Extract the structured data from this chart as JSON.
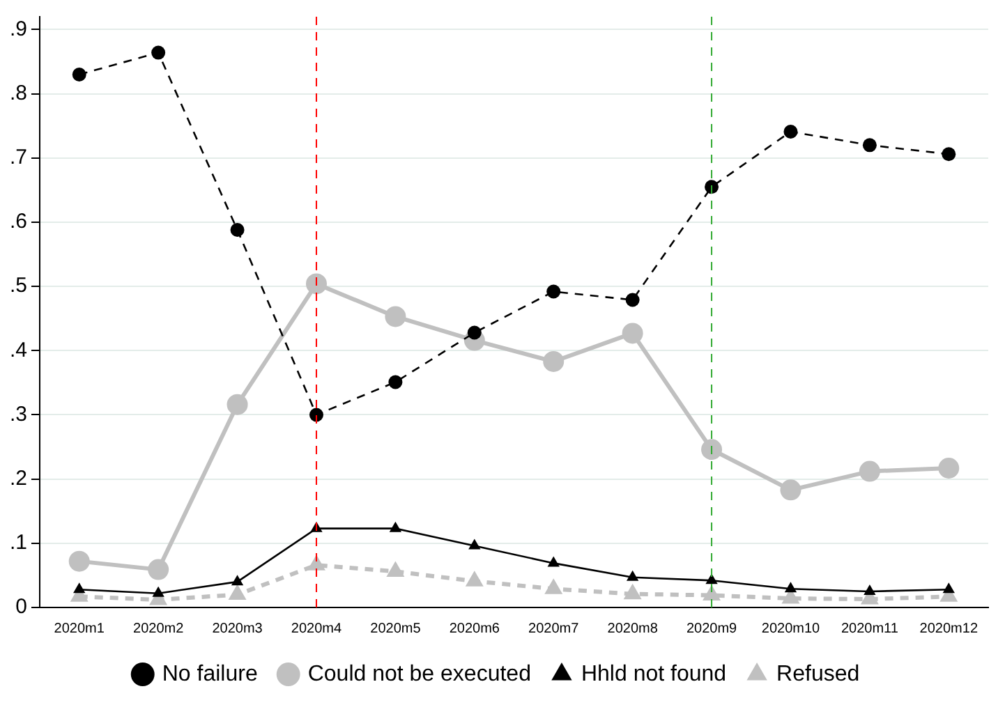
{
  "chart_data": {
    "type": "line",
    "categories": [
      "2020m1",
      "2020m2",
      "2020m3",
      "2020m4",
      "2020m5",
      "2020m6",
      "2020m7",
      "2020m8",
      "2020m9",
      "2020m10",
      "2020m11",
      "2020m12"
    ],
    "ylim": [
      0,
      0.92
    ],
    "yticks": [
      {
        "value": 0,
        "label": "0"
      },
      {
        "value": 0.1,
        "label": ".1"
      },
      {
        "value": 0.2,
        "label": ".2"
      },
      {
        "value": 0.3,
        "label": ".3"
      },
      {
        "value": 0.4,
        "label": ".4"
      },
      {
        "value": 0.5,
        "label": ".5"
      },
      {
        "value": 0.6,
        "label": ".6"
      },
      {
        "value": 0.7,
        "label": ".7"
      },
      {
        "value": 0.8,
        "label": ".8"
      },
      {
        "value": 0.9,
        "label": ".9"
      }
    ],
    "grid": "y",
    "legend": "bottom",
    "series": [
      {
        "name": "No failure",
        "color": "#000000",
        "marker": "circle",
        "line_style": "dashed",
        "values": [
          0.83,
          0.864,
          0.588,
          0.3,
          0.351,
          0.428,
          0.492,
          0.479,
          0.655,
          0.741,
          0.72,
          0.706
        ]
      },
      {
        "name": "Could not be executed",
        "color": "#c0c0c0",
        "marker": "circle",
        "line_style": "solid",
        "values": [
          0.072,
          0.059,
          0.316,
          0.504,
          0.453,
          0.416,
          0.383,
          0.427,
          0.246,
          0.183,
          0.212,
          0.217
        ]
      },
      {
        "name": "Hhld not found",
        "color": "#000000",
        "marker": "triangle",
        "line_style": "solid",
        "values": [
          0.028,
          0.022,
          0.04,
          0.123,
          0.123,
          0.096,
          0.069,
          0.047,
          0.042,
          0.029,
          0.025,
          0.028
        ]
      },
      {
        "name": "Refused",
        "color": "#c0c0c0",
        "marker": "triangle",
        "line_style": "dashed",
        "values": [
          0.017,
          0.012,
          0.02,
          0.066,
          0.056,
          0.041,
          0.029,
          0.021,
          0.019,
          0.014,
          0.013,
          0.017
        ]
      }
    ],
    "ref_lines": [
      {
        "axis": "x",
        "value": "2020m4",
        "color": "#ff0000",
        "line_style": "dashed"
      },
      {
        "axis": "x",
        "value": "2020m9",
        "color": "#33aa33",
        "line_style": "dashed"
      }
    ]
  }
}
